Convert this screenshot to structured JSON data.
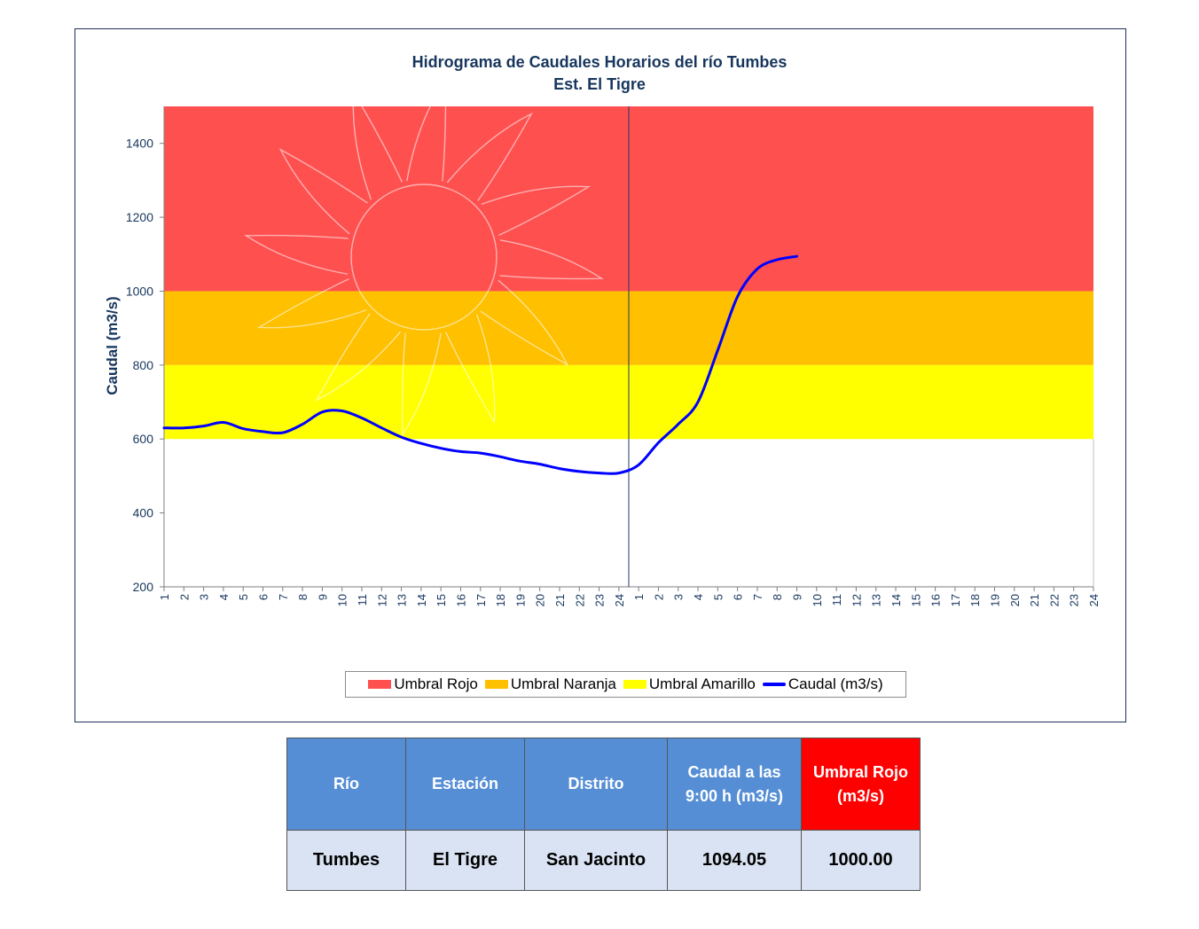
{
  "chart_data": {
    "type": "line",
    "title": "Hidrograma  de Caudales Horarios  del río  Tumbes",
    "subtitle": "Est. El Tigre",
    "ylabel": "Caudal  (m3/s)",
    "xlabel": "",
    "ylim": [
      200,
      1500
    ],
    "yticks": [
      200,
      400,
      600,
      800,
      1000,
      1200,
      1400
    ],
    "x_labels": [
      "1",
      "2",
      "3",
      "4",
      "5",
      "6",
      "7",
      "8",
      "9",
      "10",
      "11",
      "12",
      "13",
      "14",
      "15",
      "16",
      "17",
      "18",
      "19",
      "20",
      "21",
      "22",
      "23",
      "24",
      "1",
      "2",
      "3",
      "4",
      "5",
      "6",
      "7",
      "8",
      "9",
      "10",
      "11",
      "12",
      "13",
      "14",
      "15",
      "16",
      "17",
      "18",
      "19",
      "20",
      "21",
      "22",
      "23",
      "24"
    ],
    "day_separator_after_index": 24,
    "bands": [
      {
        "name": "Umbral Rojo",
        "from": 1000,
        "to": 1500,
        "color": "#ff5050"
      },
      {
        "name": "Umbral Naranja",
        "from": 800,
        "to": 1000,
        "color": "#ffc000"
      },
      {
        "name": "Umbral Amarillo",
        "from": 600,
        "to": 800,
        "color": "#ffff00"
      }
    ],
    "series": [
      {
        "name": "Caudal (m3/s)",
        "color": "#0000ff",
        "values": [
          630,
          630,
          635,
          645,
          628,
          620,
          617,
          640,
          673,
          676,
          657,
          630,
          605,
          588,
          575,
          566,
          562,
          552,
          540,
          532,
          520,
          512,
          508,
          508,
          530,
          590,
          640,
          700,
          840,
          985,
          1060,
          1085,
          1094.05
        ]
      }
    ],
    "legend_position": "bottom",
    "grid": false
  },
  "legend": [
    {
      "label": "Umbral Rojo",
      "type": "box",
      "color": "#ff5050"
    },
    {
      "label": "Umbral Naranja",
      "type": "box",
      "color": "#ffc000"
    },
    {
      "label": "Umbral Amarillo",
      "type": "box",
      "color": "#ffff00"
    },
    {
      "label": "Caudal (m3/s)",
      "type": "line",
      "color": "#0000ff"
    }
  ],
  "table": {
    "headers": [
      "Río",
      "Estación",
      "Distrito",
      "Caudal a las 9:00 h (m3/s)",
      "Umbral Rojo (m3/s)"
    ],
    "row": [
      "Tumbes",
      "El Tigre",
      "San Jacinto",
      "1094.05",
      "1000.00"
    ],
    "colors": {
      "header": "#558ed5",
      "header_alert": "#ff0000",
      "cell": "#dae3f3"
    }
  }
}
